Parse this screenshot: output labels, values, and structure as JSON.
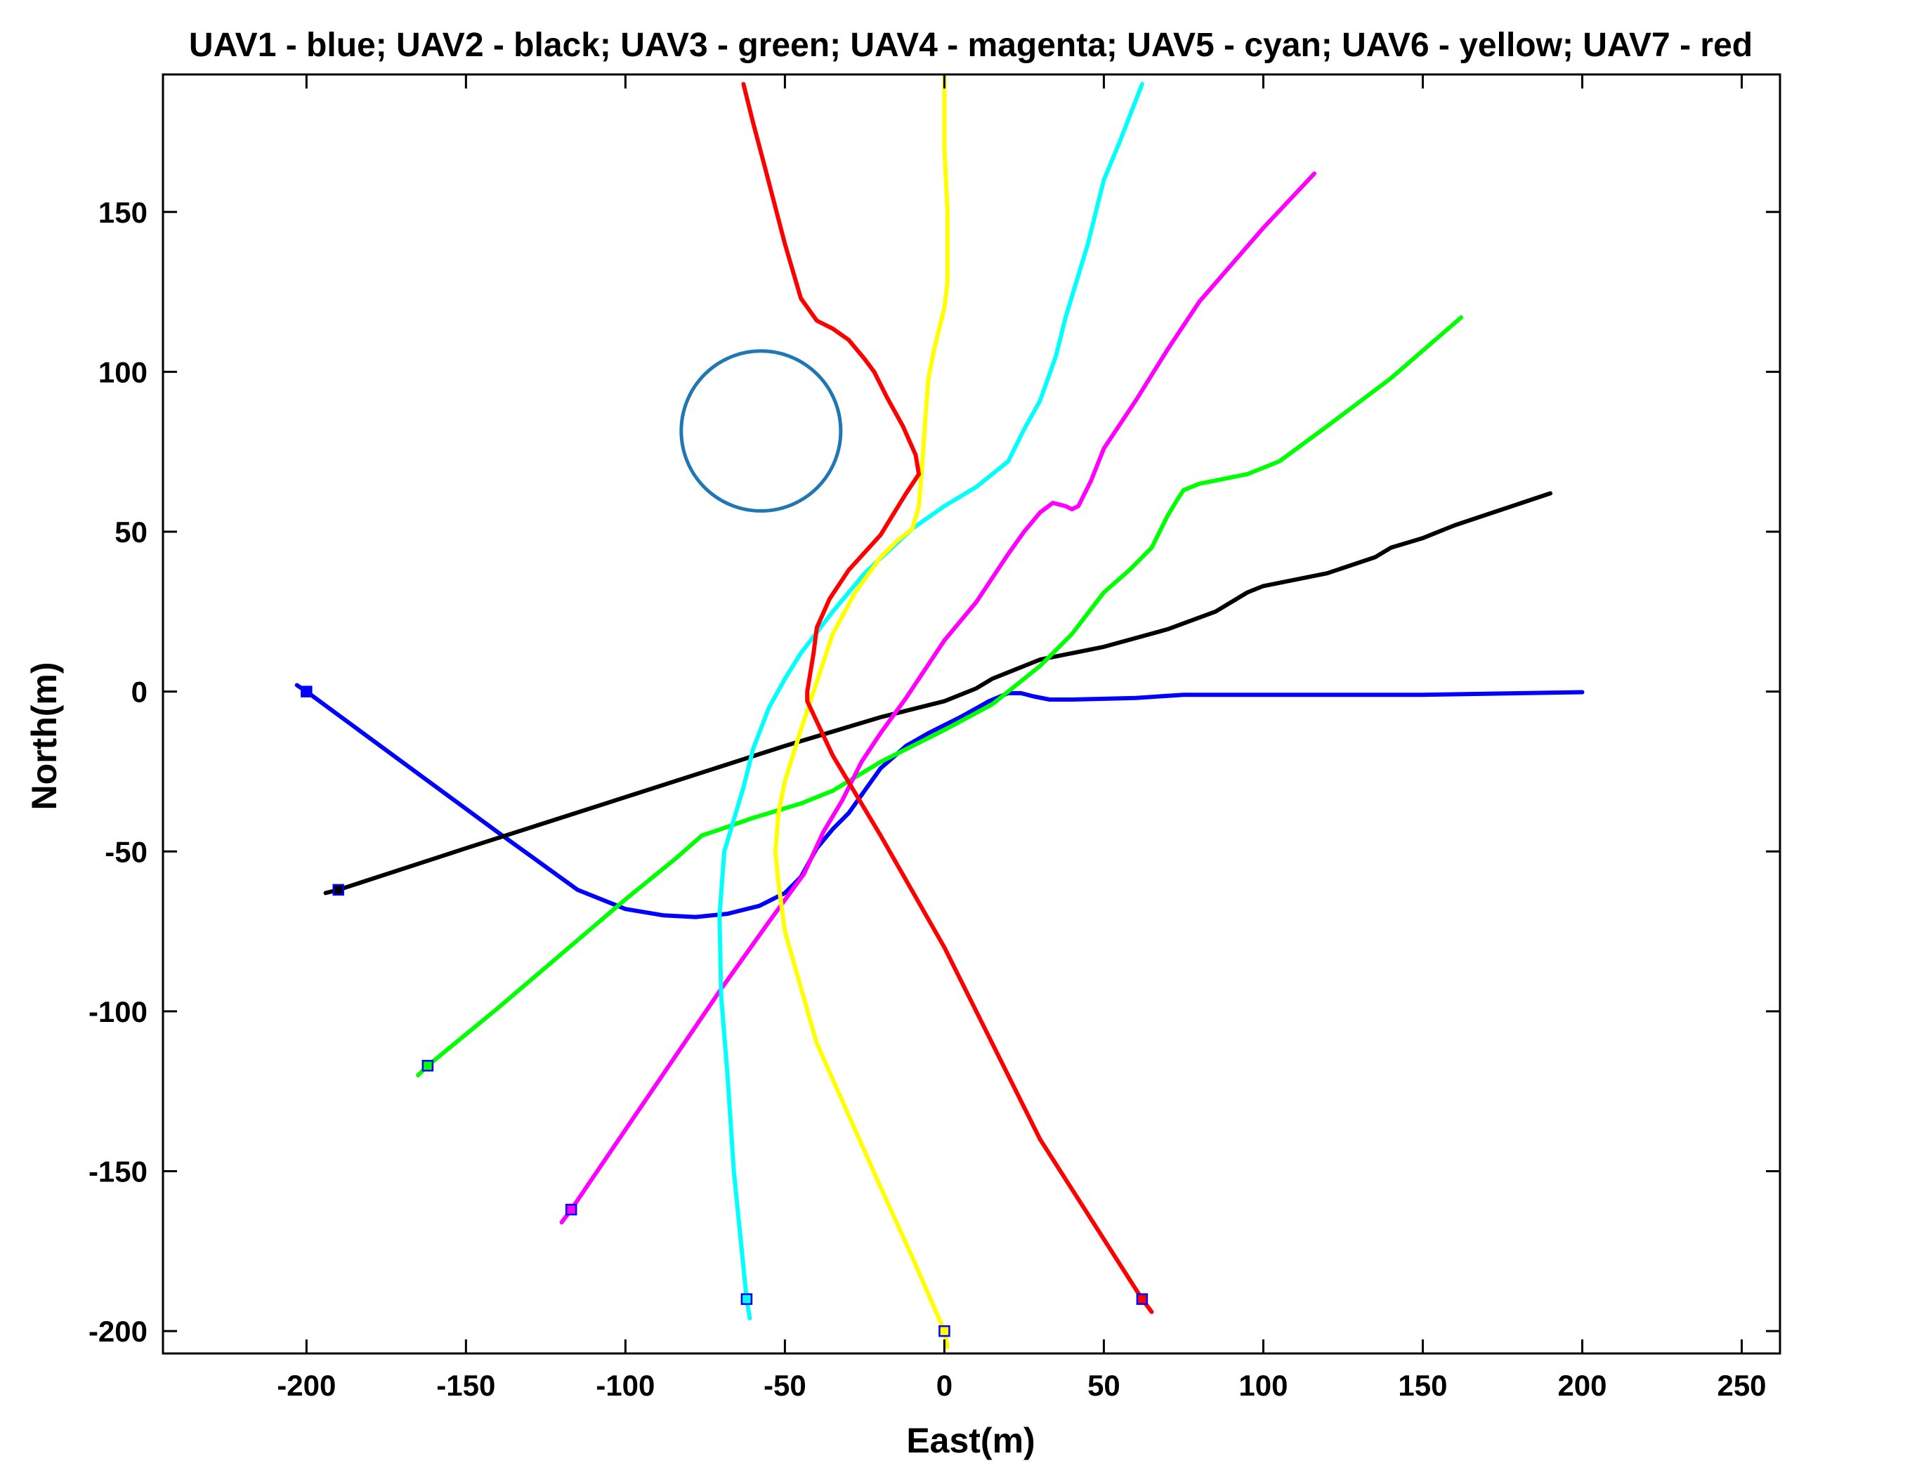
{
  "chart_data": {
    "type": "line",
    "title": "UAV1 - blue; UAV2 - black; UAV3 - green; UAV4 - magenta; UAV5 - cyan; UAV6 - yellow; UAV7 - red",
    "xlabel": "East(m)",
    "ylabel": "North(m)",
    "xlim": [
      -245,
      262
    ],
    "ylim": [
      -207,
      193
    ],
    "xticks": [
      -200,
      -150,
      -100,
      -50,
      0,
      50,
      100,
      150,
      200,
      250
    ],
    "yticks": [
      -200,
      -150,
      -100,
      -50,
      0,
      50,
      100,
      150
    ],
    "grid": false,
    "legend": "none",
    "series": [
      {
        "name": "UAV1",
        "color": "#0000ff",
        "start_marker": [
          -200,
          0
        ],
        "x": [
          -203,
          -200,
          -170,
          -140,
          -115,
          -100,
          -88,
          -78,
          -68,
          -58,
          -50,
          -45,
          -40,
          -35,
          -30,
          -25,
          -20,
          -12,
          -5,
          5,
          14,
          20,
          24,
          28,
          33,
          40,
          60,
          75,
          100,
          150,
          200
        ],
        "y": [
          2,
          0,
          -22,
          -44,
          -62,
          -68,
          -70,
          -70.5,
          -69.5,
          -67,
          -63,
          -58,
          -49,
          -43,
          -38,
          -31,
          -24,
          -17,
          -13,
          -8,
          -3,
          -0.5,
          -0.5,
          -1.5,
          -2.5,
          -2.5,
          -2,
          -1,
          -1,
          -1,
          -0.2
        ]
      },
      {
        "name": "UAV2",
        "color": "#000000",
        "start_marker": [
          -190,
          -62
        ],
        "x": [
          -194,
          -190,
          -150,
          -100,
          -50,
          -20,
          0,
          10,
          15,
          20,
          30,
          50,
          70,
          85,
          95,
          100,
          120,
          135,
          140,
          150,
          160,
          175,
          190
        ],
        "y": [
          -63,
          -62,
          -49,
          -33,
          -17,
          -8,
          -3,
          1,
          4,
          6,
          10,
          14,
          19.5,
          25,
          31,
          33,
          37,
          42,
          45,
          48,
          52,
          57,
          62
        ]
      },
      {
        "name": "UAV3",
        "color": "#00ff00",
        "start_marker": [
          -162,
          -117
        ],
        "x": [
          -165,
          -162,
          -140,
          -120,
          -100,
          -84,
          -76,
          -70,
          -60,
          -45,
          -35,
          -20,
          0,
          15,
          30,
          40,
          50,
          58,
          65,
          70,
          73,
          75,
          80,
          85,
          95,
          105,
          120,
          140,
          162
        ],
        "y": [
          -120,
          -117,
          -99,
          -82,
          -65,
          -52,
          -45,
          -43,
          -39.5,
          -35,
          -31,
          -22,
          -12,
          -4,
          8,
          18,
          31,
          38,
          45,
          55,
          60,
          63,
          65,
          66,
          68,
          72,
          83,
          98,
          117
        ]
      },
      {
        "name": "UAV4",
        "color": "#ff00ff",
        "start_marker": [
          -117,
          -162
        ],
        "x": [
          -120,
          -117,
          -100,
          -85,
          -70,
          -55,
          -44,
          -38,
          -32,
          -26,
          -20,
          -12,
          0,
          10,
          20,
          25,
          30,
          34,
          38,
          40,
          42,
          46,
          50,
          60,
          70,
          80,
          100,
          116
        ],
        "y": [
          -166,
          -162,
          -137,
          -115,
          -93,
          -72,
          -57,
          -44,
          -34,
          -22,
          -13,
          -2,
          16,
          28,
          43,
          50,
          56,
          59,
          58,
          57,
          58,
          66,
          76,
          91,
          107,
          122,
          145,
          162
        ]
      },
      {
        "name": "UAV5",
        "color": "#00ffff",
        "start_marker": [
          -62,
          -190
        ],
        "x": [
          -61,
          -62,
          -66,
          -68,
          -70,
          -70.5,
          -69,
          -66,
          -63,
          -60,
          -55,
          -50,
          -45,
          -35,
          -25,
          -10,
          0,
          10,
          15,
          20,
          25,
          30,
          35,
          37,
          38,
          45,
          50,
          55,
          62
        ],
        "y": [
          -196,
          -190,
          -150,
          -120,
          -95,
          -70,
          -50,
          -40,
          -30,
          -18,
          -5,
          4,
          12,
          25,
          37,
          51,
          58,
          64,
          68,
          72,
          82,
          91,
          105,
          113,
          117,
          140,
          160,
          172,
          190
        ]
      },
      {
        "name": "UAV6",
        "color": "#ffff00",
        "start_marker": [
          0,
          -200
        ],
        "x": [
          1,
          0,
          -10,
          -20,
          -40,
          -50,
          -52,
          -53,
          -52,
          -50,
          -45,
          -40,
          -35,
          -28,
          -20,
          -15,
          -10,
          -8,
          -7,
          -6,
          -5,
          -3,
          0,
          1,
          1,
          0,
          0
        ],
        "y": [
          -205,
          -200,
          -177,
          -155,
          -110,
          -75,
          -60,
          -50,
          -38,
          -28,
          -12,
          3,
          18,
          31,
          42,
          47,
          51,
          58,
          70,
          85,
          98,
          108,
          120,
          128,
          150,
          170,
          193
        ]
      },
      {
        "name": "UAV7",
        "color": "#ff0000",
        "start_marker": [
          62,
          -190
        ],
        "x": [
          65,
          62,
          30,
          0,
          -20,
          -35,
          -43,
          -43,
          -41,
          -40,
          -36,
          -30,
          -20,
          -12,
          -8,
          -9,
          -13,
          -18,
          -22,
          -25,
          -30,
          -35,
          -40,
          -45,
          -50,
          -56,
          -60,
          -63
        ],
        "y": [
          -194,
          -190,
          -140,
          -80,
          -45,
          -20,
          -3,
          0,
          12,
          20,
          29,
          38,
          49,
          62,
          68,
          74,
          83,
          92,
          100,
          104,
          110,
          113.5,
          116,
          123,
          140,
          163,
          178,
          190
        ]
      }
    ],
    "annotations": [
      {
        "type": "circle",
        "color": "#1f77b4",
        "center": [
          -57.5,
          81.5
        ],
        "radius": 25
      }
    ]
  }
}
